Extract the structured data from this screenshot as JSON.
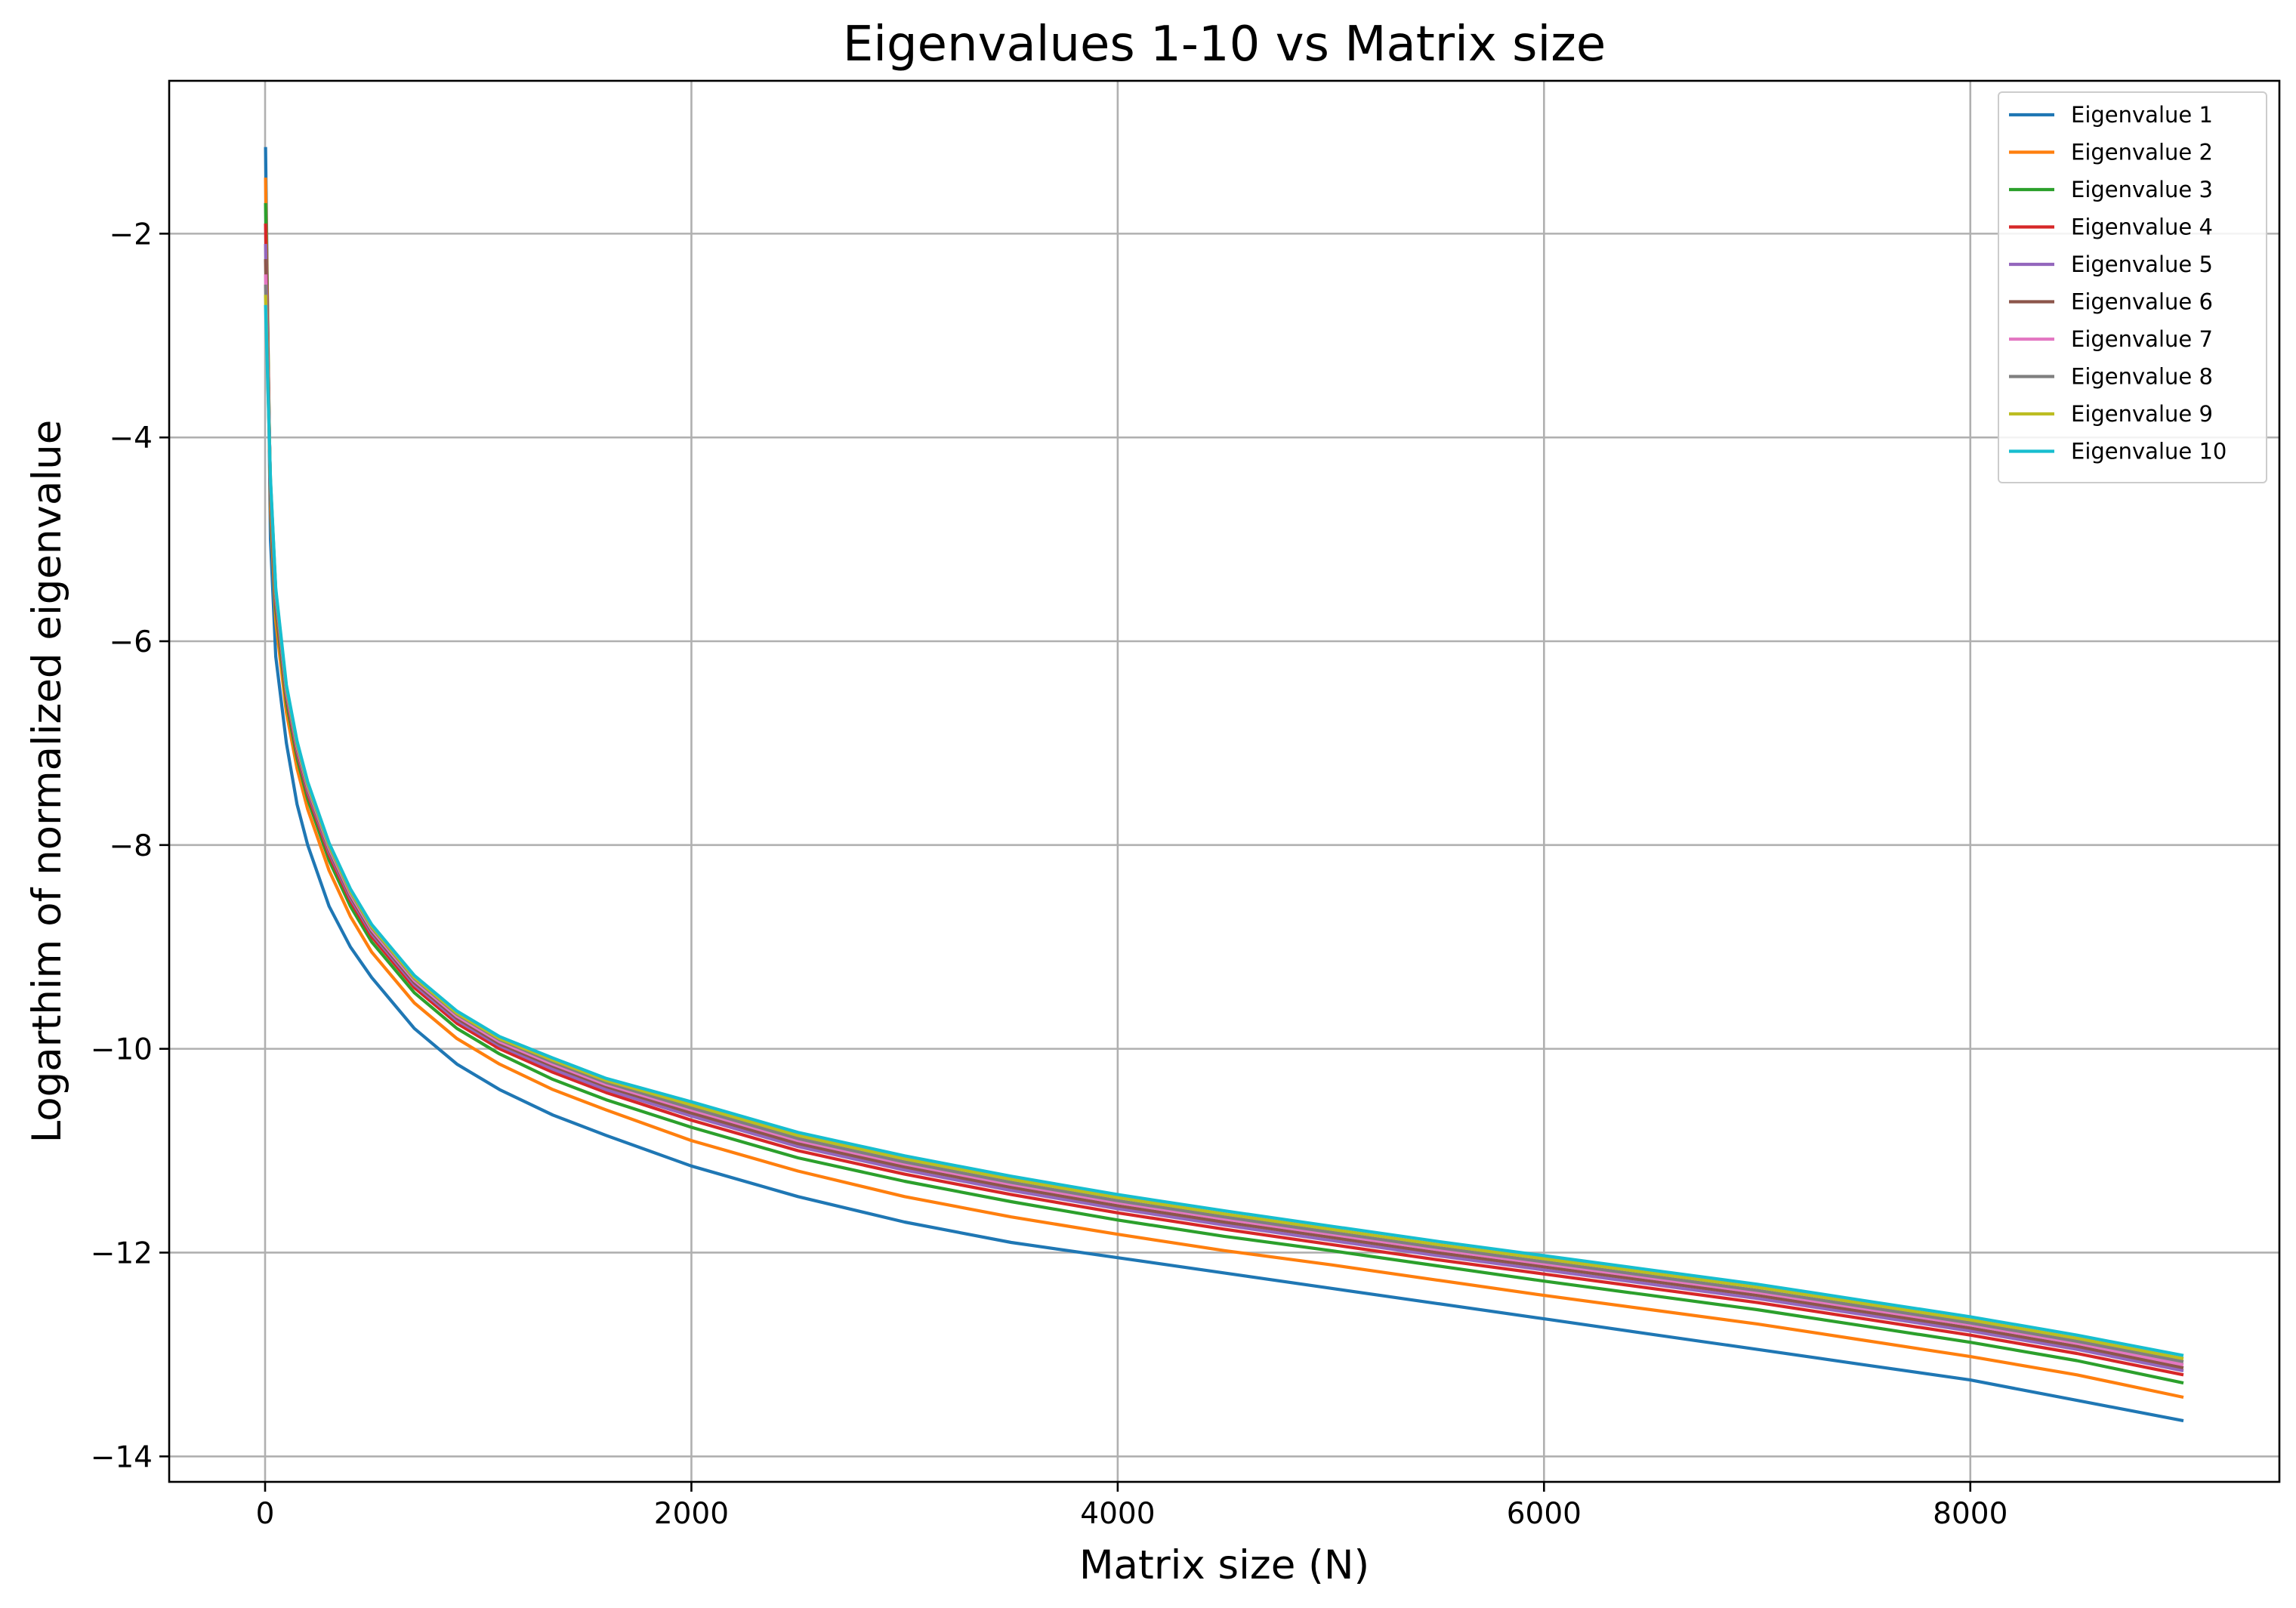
{
  "chart_data": {
    "type": "line",
    "title": "Eigenvalues 1-10 vs Matrix size",
    "xlabel": "Matrix size (N)",
    "ylabel": "Logarthim of normalized eigenvalue",
    "xlim": [
      -450,
      9450
    ],
    "ylim": [
      -14.25,
      -0.5
    ],
    "xticks": [
      0,
      2000,
      4000,
      6000,
      8000
    ],
    "xtick_labels": [
      "0",
      "2000",
      "4000",
      "6000",
      "8000"
    ],
    "yticks": [
      -2,
      -4,
      -6,
      -8,
      -10,
      -12,
      -14
    ],
    "ytick_labels": [
      "−2",
      "−4",
      "−6",
      "−8",
      "−10",
      "−12",
      "−14"
    ],
    "grid": true,
    "legend_position": "top-right",
    "x": [
      2,
      25,
      50,
      100,
      150,
      200,
      300,
      400,
      500,
      700,
      900,
      1100,
      1350,
      1600,
      2000,
      2500,
      3000,
      3500,
      4000,
      4500,
      5000,
      5500,
      6000,
      6500,
      7000,
      7500,
      8000,
      8500,
      9000
    ],
    "series": [
      {
        "name": "Eigenvalue 1",
        "color": "#1f77b4",
        "values": [
          -1.15,
          -5.0,
          -6.15,
          -7.0,
          -7.6,
          -8.0,
          -8.6,
          -9.0,
          -9.3,
          -9.8,
          -10.15,
          -10.4,
          -10.65,
          -10.85,
          -11.15,
          -11.45,
          -11.7,
          -11.9,
          -12.05,
          -12.2,
          -12.35,
          -12.5,
          -12.65,
          -12.8,
          -12.95,
          -13.1,
          -13.25,
          -13.45,
          -13.65
        ]
      },
      {
        "name": "Eigenvalue 2",
        "color": "#ff7f0e",
        "values": [
          -1.45,
          -4.7,
          -5.8,
          -6.7,
          -7.25,
          -7.65,
          -8.25,
          -8.7,
          -9.05,
          -9.55,
          -9.9,
          -10.15,
          -10.4,
          -10.6,
          -10.9,
          -11.2,
          -11.45,
          -11.65,
          -11.82,
          -11.98,
          -12.12,
          -12.27,
          -12.42,
          -12.56,
          -12.7,
          -12.86,
          -13.02,
          -13.2,
          -13.42
        ]
      },
      {
        "name": "Eigenvalue 3",
        "color": "#2ca02c",
        "values": [
          -1.7,
          -4.6,
          -5.68,
          -6.6,
          -7.15,
          -7.55,
          -8.15,
          -8.6,
          -8.95,
          -9.45,
          -9.8,
          -10.05,
          -10.3,
          -10.5,
          -10.77,
          -11.07,
          -11.3,
          -11.5,
          -11.68,
          -11.84,
          -11.98,
          -12.13,
          -12.28,
          -12.42,
          -12.56,
          -12.72,
          -12.88,
          -13.06,
          -13.28
        ]
      },
      {
        "name": "Eigenvalue 4",
        "color": "#d62728",
        "values": [
          -1.9,
          -4.55,
          -5.62,
          -6.55,
          -7.1,
          -7.5,
          -8.1,
          -8.55,
          -8.9,
          -9.4,
          -9.75,
          -10.0,
          -10.23,
          -10.43,
          -10.7,
          -11.0,
          -11.23,
          -11.43,
          -11.61,
          -11.77,
          -11.92,
          -12.07,
          -12.21,
          -12.35,
          -12.49,
          -12.65,
          -12.81,
          -12.99,
          -13.2
        ]
      },
      {
        "name": "Eigenvalue 5",
        "color": "#9467bd",
        "values": [
          -2.1,
          -4.5,
          -5.58,
          -6.52,
          -7.07,
          -7.47,
          -8.07,
          -8.52,
          -8.87,
          -9.37,
          -9.72,
          -9.97,
          -10.2,
          -10.4,
          -10.66,
          -10.96,
          -11.19,
          -11.39,
          -11.57,
          -11.73,
          -11.88,
          -12.03,
          -12.17,
          -12.31,
          -12.45,
          -12.61,
          -12.77,
          -12.95,
          -13.16
        ]
      },
      {
        "name": "Eigenvalue 6",
        "color": "#8c564b",
        "values": [
          -2.25,
          -4.47,
          -5.55,
          -6.5,
          -7.05,
          -7.45,
          -8.05,
          -8.5,
          -8.85,
          -9.35,
          -9.7,
          -9.95,
          -10.17,
          -10.37,
          -10.63,
          -10.93,
          -11.16,
          -11.36,
          -11.54,
          -11.7,
          -11.85,
          -12.0,
          -12.14,
          -12.28,
          -12.42,
          -12.58,
          -12.74,
          -12.92,
          -13.13
        ]
      },
      {
        "name": "Eigenvalue 7",
        "color": "#e377c2",
        "values": [
          -2.4,
          -4.45,
          -5.53,
          -6.48,
          -7.03,
          -7.43,
          -8.03,
          -8.48,
          -8.83,
          -9.33,
          -9.68,
          -9.93,
          -10.15,
          -10.35,
          -10.6,
          -10.9,
          -11.13,
          -11.33,
          -11.51,
          -11.67,
          -11.82,
          -11.97,
          -12.11,
          -12.25,
          -12.39,
          -12.55,
          -12.71,
          -12.89,
          -13.1
        ]
      },
      {
        "name": "Eigenvalue 8",
        "color": "#7f7f7f",
        "values": [
          -2.5,
          -4.43,
          -5.51,
          -6.46,
          -7.01,
          -7.41,
          -8.01,
          -8.46,
          -8.81,
          -9.31,
          -9.66,
          -9.91,
          -10.13,
          -10.33,
          -10.58,
          -10.88,
          -11.11,
          -11.31,
          -11.49,
          -11.65,
          -11.8,
          -11.95,
          -12.09,
          -12.23,
          -12.37,
          -12.53,
          -12.69,
          -12.87,
          -13.07
        ]
      },
      {
        "name": "Eigenvalue 9",
        "color": "#bcbd22",
        "values": [
          -2.6,
          -4.42,
          -5.5,
          -6.45,
          -7.0,
          -7.4,
          -8.0,
          -8.45,
          -8.8,
          -9.3,
          -9.65,
          -9.9,
          -10.11,
          -10.31,
          -10.55,
          -10.85,
          -11.08,
          -11.28,
          -11.46,
          -11.62,
          -11.77,
          -11.92,
          -12.06,
          -12.2,
          -12.34,
          -12.5,
          -12.66,
          -12.84,
          -13.04
        ]
      },
      {
        "name": "Eigenvalue 10",
        "color": "#17becf",
        "values": [
          -2.7,
          -4.4,
          -5.48,
          -6.43,
          -6.98,
          -7.38,
          -7.98,
          -8.43,
          -8.78,
          -9.28,
          -9.63,
          -9.88,
          -10.09,
          -10.29,
          -10.52,
          -10.82,
          -11.05,
          -11.25,
          -11.43,
          -11.59,
          -11.74,
          -11.89,
          -12.03,
          -12.17,
          -12.31,
          -12.47,
          -12.63,
          -12.81,
          -13.01
        ]
      }
    ]
  }
}
